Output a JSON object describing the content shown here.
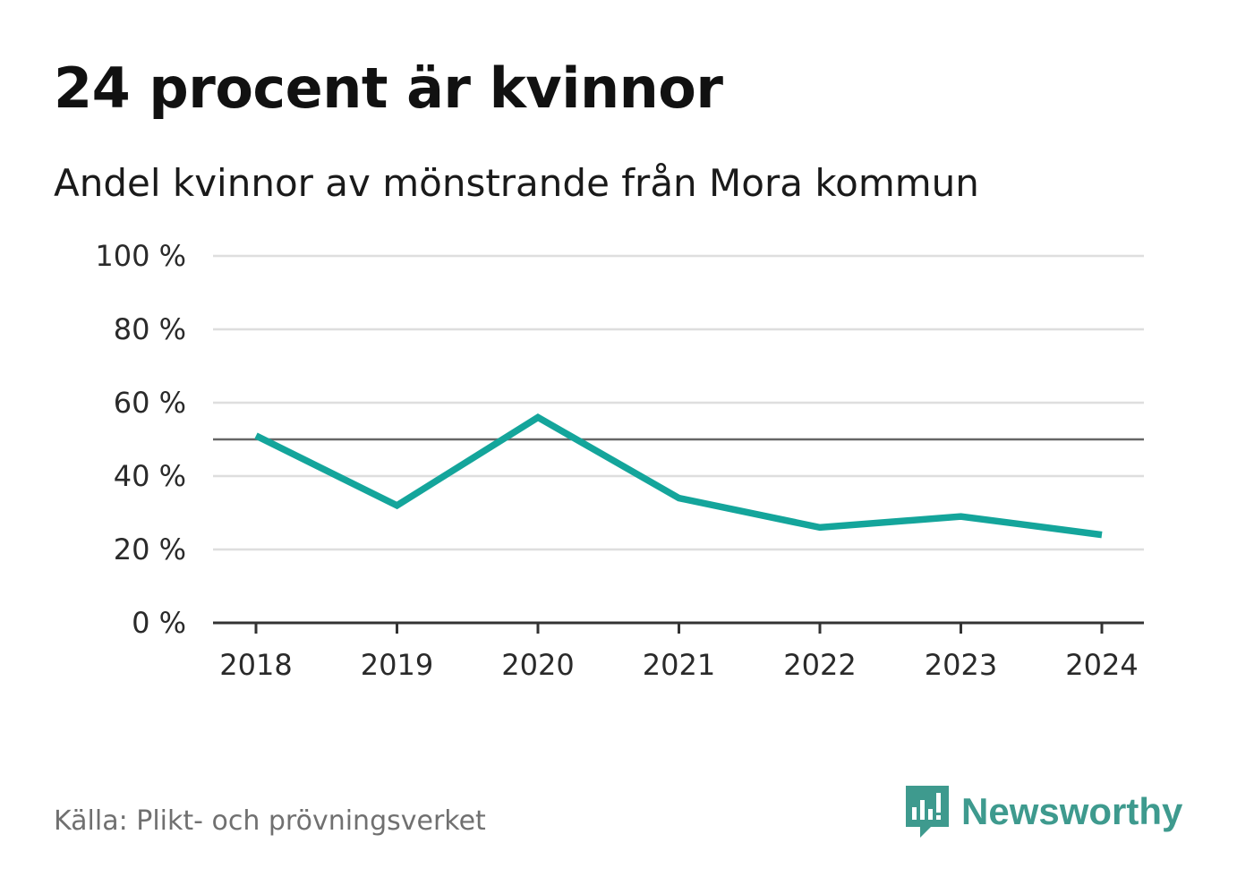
{
  "title": "24 procent är kvinnor",
  "subtitle": "Andel kvinnor av mönstrande från Mora kommun",
  "source": "Källa: Plikt- och prövningsverket",
  "logo": {
    "text": "Newsworthy",
    "icon": "newsworthy-bar-chart-icon"
  },
  "colors": {
    "line": "#14a59b",
    "grid": "#dedede",
    "axis": "#333333",
    "reference": "#666666"
  },
  "chart_data": {
    "type": "line",
    "title": "24 procent är kvinnor",
    "subtitle": "Andel kvinnor av mönstrande från Mora kommun",
    "xlabel": "",
    "ylabel": "",
    "x": [
      "2018",
      "2019",
      "2020",
      "2021",
      "2022",
      "2023",
      "2024"
    ],
    "series": [
      {
        "name": "Andel kvinnor",
        "values": [
          51,
          32,
          56,
          34,
          26,
          29,
          24
        ]
      }
    ],
    "ylim": [
      0,
      100
    ],
    "yticks": [
      0,
      20,
      40,
      60,
      80,
      100
    ],
    "ytick_labels": [
      "0 %",
      "20 %",
      "40 %",
      "60 %",
      "80 %",
      "100 %"
    ],
    "reference_line": 50,
    "grid": true,
    "legend": "none"
  }
}
